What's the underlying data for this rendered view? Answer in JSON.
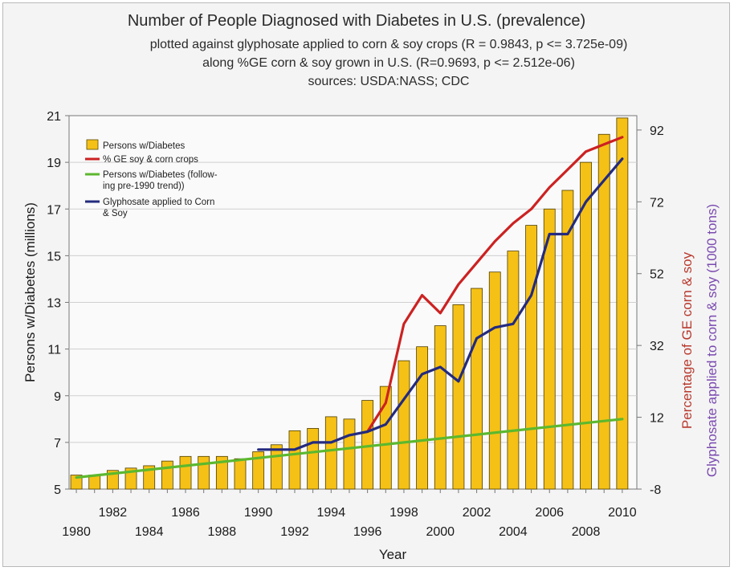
{
  "chart_data": {
    "type": "bar",
    "title": "Number of People Diagnosed with Diabetes in U.S. (prevalence)",
    "subtitles": [
      "plotted against glyphosate applied to corn & soy crops (R = 0.9843, p <= 3.725e-09)",
      "along %GE corn & soy grown in U.S. (R=0.9693, p <= 2.512e-06)",
      "sources: USDA:NASS; CDC"
    ],
    "xlabel": "Year",
    "ylabel_left": "Persons w/Diabetes (millions)",
    "ylabel_right_1": "Percentage of GE corn & soy",
    "ylabel_right_2": "Glyphosate applied to corn & soy (1000 tons)",
    "ylim_left": [
      5,
      21
    ],
    "yticks_left": [
      5,
      7,
      9,
      11,
      13,
      15,
      17,
      19,
      21
    ],
    "ylim_right": [
      -8,
      96
    ],
    "yticks_right": [
      -8,
      12,
      32,
      52,
      72,
      92
    ],
    "xticks_upper": [
      "1982",
      "1986",
      "1990",
      "1994",
      "1998",
      "2002",
      "2006",
      "2010"
    ],
    "xticks_lower": [
      "1980",
      "1984",
      "1988",
      "1992",
      "1996",
      "2000",
      "2004",
      "2008"
    ],
    "years": [
      1980,
      1981,
      1982,
      1983,
      1984,
      1985,
      1986,
      1987,
      1988,
      1989,
      1990,
      1991,
      1992,
      1993,
      1994,
      1995,
      1996,
      1997,
      1998,
      1999,
      2000,
      2001,
      2002,
      2003,
      2004,
      2005,
      2006,
      2007,
      2008,
      2009,
      2010
    ],
    "series": [
      {
        "name": "Persons w/Diabetes",
        "type": "bar",
        "axis": "left",
        "color": "#f5c116",
        "x": [
          1980,
          1981,
          1982,
          1983,
          1984,
          1985,
          1986,
          1987,
          1988,
          1989,
          1990,
          1991,
          1992,
          1993,
          1994,
          1995,
          1996,
          1997,
          1998,
          1999,
          2000,
          2001,
          2002,
          2003,
          2004,
          2005,
          2006,
          2007,
          2008,
          2009,
          2010
        ],
        "values": [
          5.6,
          5.6,
          5.8,
          5.9,
          6.0,
          6.2,
          6.4,
          6.4,
          6.4,
          6.3,
          6.6,
          6.9,
          7.5,
          7.6,
          8.1,
          8.0,
          8.8,
          9.4,
          10.5,
          11.1,
          12.0,
          12.9,
          13.6,
          14.3,
          15.2,
          16.3,
          17.0,
          17.8,
          19.0,
          20.2,
          20.9
        ]
      },
      {
        "name": "% GE soy & corn crops",
        "type": "line",
        "axis": "right",
        "color": "#cc2222",
        "x": [
          1996,
          1997,
          1998,
          1999,
          2000,
          2001,
          2002,
          2003,
          2004,
          2005,
          2006,
          2007,
          2008,
          2009,
          2010
        ],
        "values": [
          8,
          16,
          38,
          46,
          41,
          49,
          55,
          61,
          66,
          70,
          76,
          81,
          86,
          88,
          90
        ]
      },
      {
        "name": "Persons w/Diabetes (following pre-1990 trend))",
        "legend_lines": [
          "Persons w/Diabetes (follow-",
          "ing pre-1990 trend))"
        ],
        "type": "line",
        "axis": "left",
        "color": "#5cb82e",
        "x": [
          1980,
          2010
        ],
        "values": [
          5.5,
          8.0
        ]
      },
      {
        "name": "Glyphosate applied to Corn & Soy",
        "legend_lines": [
          "Glyphosate applied to Corn",
          "& Soy"
        ],
        "type": "line",
        "axis": "right",
        "color": "#232a7e",
        "x": [
          1990,
          1991,
          1992,
          1993,
          1994,
          1995,
          1996,
          1997,
          1998,
          1999,
          2000,
          2001,
          2002,
          2003,
          2004,
          2005,
          2006,
          2007,
          2008,
          2009,
          2010
        ],
        "values": [
          3,
          3,
          3,
          5,
          5,
          7,
          8,
          10,
          17,
          24,
          26,
          22,
          34,
          37,
          38,
          46,
          63,
          63,
          72,
          78,
          84
        ]
      }
    ],
    "legend_position": "top-left"
  }
}
